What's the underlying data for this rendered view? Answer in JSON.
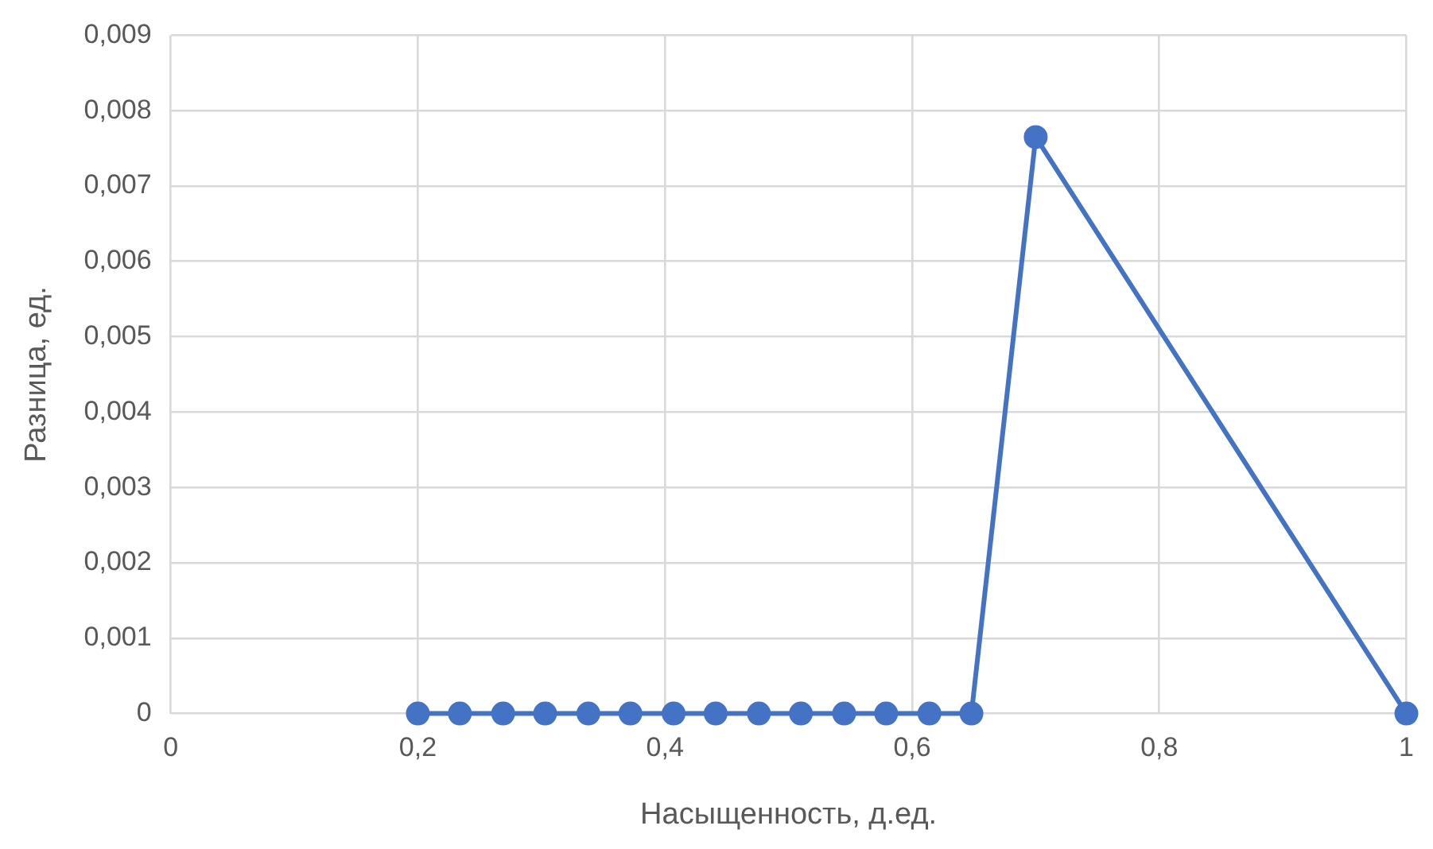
{
  "chart_data": {
    "type": "line",
    "xlabel": "Насыщенность, д.ед.",
    "ylabel": "Разница, ед.",
    "series": [
      {
        "color": "#4472c4",
        "x": [
          0.2,
          0.234,
          0.269,
          0.303,
          0.338,
          0.372,
          0.407,
          0.441,
          0.476,
          0.51,
          0.545,
          0.579,
          0.614,
          0.648,
          0.7,
          1
        ],
        "values": [
          0,
          0,
          0,
          0,
          0,
          0,
          0,
          0,
          0,
          0,
          0,
          0,
          0,
          0,
          0.00765,
          0
        ]
      }
    ],
    "xlim": [
      0,
      1
    ],
    "xticks": [
      {
        "value": 0,
        "label": "0"
      },
      {
        "value": 0.2,
        "label": "0,2"
      },
      {
        "value": 0.4,
        "label": "0,4"
      },
      {
        "value": 0.6,
        "label": "0,6"
      },
      {
        "value": 0.8,
        "label": "0,8"
      },
      {
        "value": 1,
        "label": "1"
      }
    ],
    "ylim": [
      0,
      0.009
    ],
    "yticks": [
      {
        "value": 0,
        "label": "0"
      },
      {
        "value": 0.001,
        "label": "0,001"
      },
      {
        "value": 0.002,
        "label": "0,002"
      },
      {
        "value": 0.003,
        "label": "0,003"
      },
      {
        "value": 0.004,
        "label": "0,004"
      },
      {
        "value": 0.005,
        "label": "0,005"
      },
      {
        "value": 0.006,
        "label": "0,006"
      },
      {
        "value": 0.007,
        "label": "0,007"
      },
      {
        "value": 0.008,
        "label": "0,008"
      },
      {
        "value": 0.009,
        "label": "0,009"
      }
    ],
    "grid": true,
    "legend": false,
    "marker": "circle",
    "line_style": "solid"
  }
}
